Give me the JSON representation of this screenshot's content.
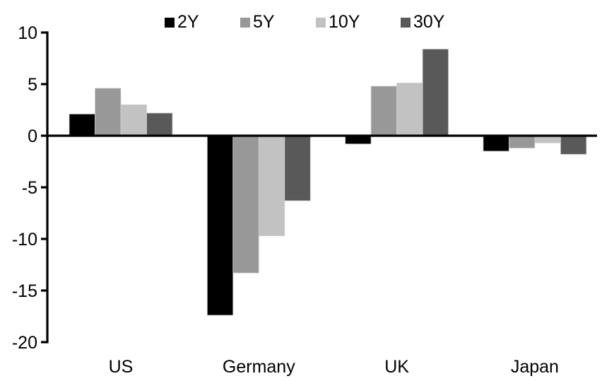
{
  "chart_data": {
    "type": "bar",
    "title": "",
    "xlabel": "",
    "ylabel": "",
    "categories": [
      "US",
      "Germany",
      "UK",
      "Japan"
    ],
    "series": [
      {
        "name": "2Y",
        "color": "#000000",
        "values": [
          2.1,
          -17.4,
          -0.8,
          -1.5
        ]
      },
      {
        "name": "5Y",
        "color": "#989898",
        "values": [
          4.6,
          -13.3,
          4.8,
          -1.2
        ]
      },
      {
        "name": "10Y",
        "color": "#c2c2c2",
        "values": [
          3.0,
          -9.7,
          5.1,
          -0.7
        ]
      },
      {
        "name": "30Y",
        "color": "#595959",
        "values": [
          2.2,
          -6.3,
          8.4,
          -1.8
        ]
      }
    ],
    "ylim": [
      -20,
      10
    ],
    "yticks": [
      10,
      5,
      0,
      -5,
      -10,
      -15,
      -20
    ],
    "grid": false,
    "legend_position": "top",
    "axis_color": "#000000",
    "background_color": "#ffffff"
  }
}
